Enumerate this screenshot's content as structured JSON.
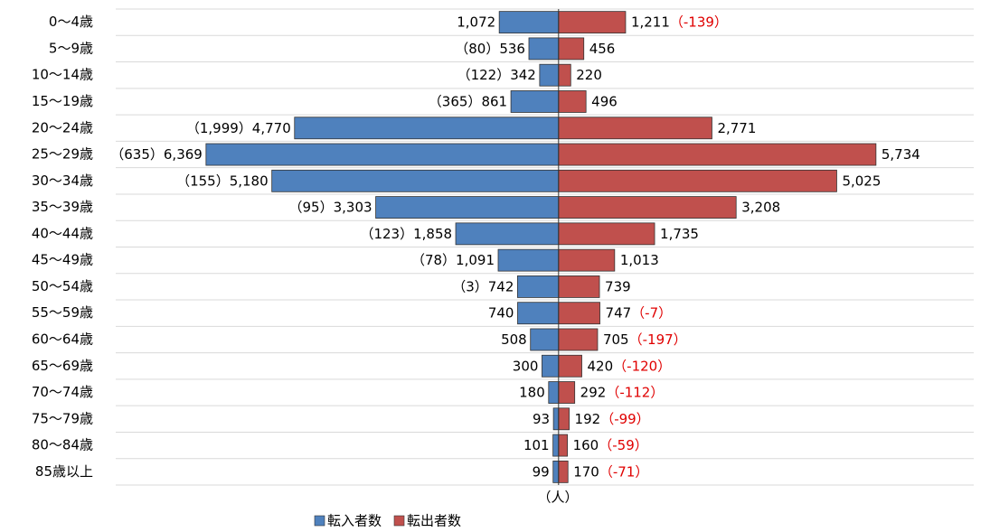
{
  "chart_data": {
    "type": "pyramid",
    "categories": [
      "0〜4歳",
      "5〜9歳",
      "10〜14歳",
      "15〜19歳",
      "20〜24歳",
      "25〜29歳",
      "30〜34歳",
      "35〜39歳",
      "40〜44歳",
      "45〜49歳",
      "50〜54歳",
      "55〜59歳",
      "60〜64歳",
      "65〜69歳",
      "70〜74歳",
      "75〜79歳",
      "80〜84歳",
      "85歳以上"
    ],
    "series": [
      {
        "name": "転入者数",
        "color": "#4f81bd",
        "side": "left",
        "values": [
          1072,
          536,
          342,
          861,
          4770,
          6369,
          5180,
          3303,
          1858,
          1091,
          742,
          740,
          508,
          300,
          180,
          93,
          101,
          99
        ],
        "value_labels": [
          "1,072",
          "536",
          "342",
          "861",
          "4,770",
          "6,369",
          "5,180",
          "3,303",
          "1,858",
          "1,091",
          "742",
          "740",
          "508",
          "300",
          "180",
          "93",
          "101",
          "99"
        ]
      },
      {
        "name": "転出者数",
        "color": "#c0504d",
        "side": "right",
        "values": [
          1211,
          456,
          220,
          496,
          2771,
          5734,
          5025,
          3208,
          1735,
          1013,
          739,
          747,
          705,
          420,
          292,
          192,
          160,
          170
        ],
        "value_labels": [
          "1,211",
          "456",
          "220",
          "496",
          "2,771",
          "5,734",
          "5,025",
          "3,208",
          "1,735",
          "1,013",
          "739",
          "747",
          "705",
          "420",
          "292",
          "192",
          "160",
          "170"
        ]
      }
    ],
    "net_values": [
      -139,
      80,
      122,
      365,
      1999,
      635,
      155,
      95,
      123,
      78,
      3,
      -7,
      -197,
      -120,
      -112,
      -99,
      -59,
      -71
    ],
    "net_labels": [
      "（-139）",
      "（80）",
      "（122）",
      "（365）",
      "（1,999）",
      "（635）",
      "（155）",
      "（95）",
      "（123）",
      "（78）",
      "（3）",
      "（-7）",
      "（-197）",
      "（-120）",
      "（-112）",
      "（-99）",
      "（-59）",
      "（-71）"
    ],
    "negative_color": "#e00000",
    "unit_label": "（人）",
    "xlim": [
      -8000,
      7500
    ],
    "grid": true
  }
}
